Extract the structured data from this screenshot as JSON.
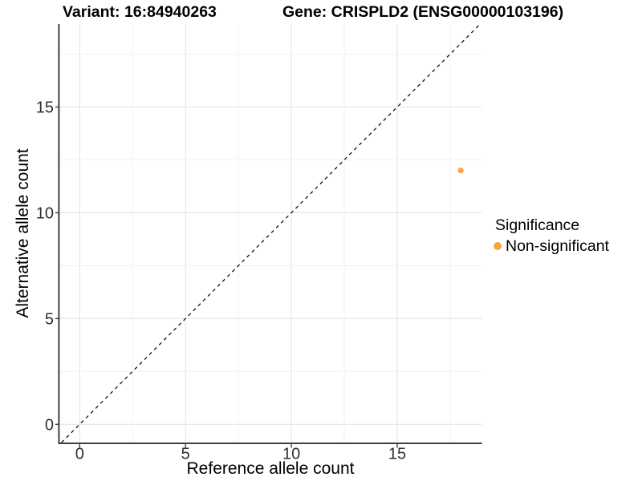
{
  "chart_data": {
    "type": "scatter",
    "title_left": "Variant: 16:84940263",
    "title_right": "Gene: CRISPLD2 (ENSG00000103196)",
    "xlabel": "Reference allele count",
    "ylabel": "Alternative allele count",
    "xlim": [
      -0.94,
      19.0
    ],
    "ylim": [
      -0.86,
      18.92
    ],
    "x_major_ticks": [
      0,
      5,
      10,
      15
    ],
    "y_major_ticks": [
      0,
      5,
      10,
      15
    ],
    "x_minor_ticks": [
      2.5,
      7.5,
      12.5,
      17.5
    ],
    "y_minor_ticks": [
      2.5,
      7.5,
      12.5,
      17.5
    ],
    "grid": true,
    "identity_line": {
      "style": "dashed",
      "color": "#111111"
    },
    "series": [
      {
        "name": "Non-significant",
        "color": "#FAA43C",
        "points": [
          {
            "x": 18,
            "y": 12
          }
        ]
      }
    ],
    "legend": {
      "title": "Significance",
      "position": "right",
      "items": [
        {
          "label": "Non-significant",
          "color": "#FAA43C"
        }
      ]
    },
    "colors": {
      "axis_line": "#404040",
      "tick_label": "#303030",
      "grid_major": "#e6e6e6",
      "grid_minor": "#f0f0f0"
    }
  }
}
